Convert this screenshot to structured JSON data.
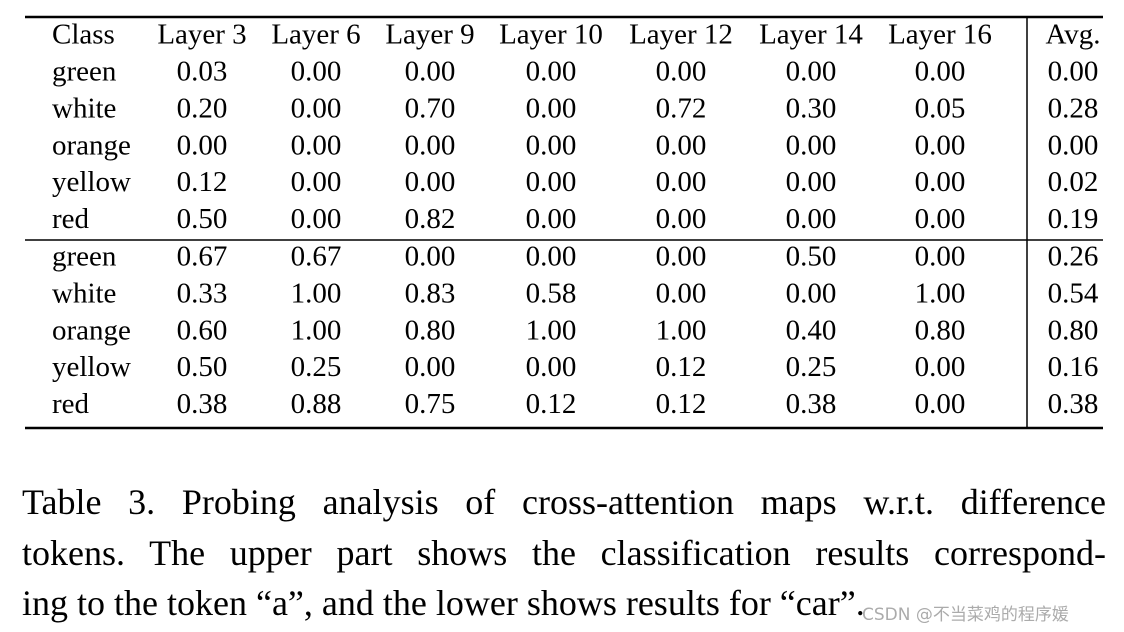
{
  "table": {
    "header": [
      "Class",
      "Layer 3",
      "Layer 6",
      "Layer 9",
      "Layer 10",
      "Layer 12",
      "Layer 14",
      "Layer 16",
      "Avg."
    ],
    "groups": [
      {
        "rows": [
          [
            "green",
            "0.03",
            "0.00",
            "0.00",
            "0.00",
            "0.00",
            "0.00",
            "0.00",
            "0.00"
          ],
          [
            "white",
            "0.20",
            "0.00",
            "0.70",
            "0.00",
            "0.72",
            "0.30",
            "0.05",
            "0.28"
          ],
          [
            "orange",
            "0.00",
            "0.00",
            "0.00",
            "0.00",
            "0.00",
            "0.00",
            "0.00",
            "0.00"
          ],
          [
            "yellow",
            "0.12",
            "0.00",
            "0.00",
            "0.00",
            "0.00",
            "0.00",
            "0.00",
            "0.02"
          ],
          [
            "red",
            "0.50",
            "0.00",
            "0.82",
            "0.00",
            "0.00",
            "0.00",
            "0.00",
            "0.19"
          ]
        ]
      },
      {
        "rows": [
          [
            "green",
            "0.67",
            "0.67",
            "0.00",
            "0.00",
            "0.00",
            "0.50",
            "0.00",
            "0.26"
          ],
          [
            "white",
            "0.33",
            "1.00",
            "0.83",
            "0.58",
            "0.00",
            "0.00",
            "1.00",
            "0.54"
          ],
          [
            "orange",
            "0.60",
            "1.00",
            "0.80",
            "1.00",
            "1.00",
            "0.40",
            "0.80",
            "0.80"
          ],
          [
            "yellow",
            "0.50",
            "0.25",
            "0.00",
            "0.00",
            "0.12",
            "0.25",
            "0.00",
            "0.16"
          ],
          [
            "red",
            "0.38",
            "0.88",
            "0.75",
            "0.12",
            "0.12",
            "0.38",
            "0.00",
            "0.38"
          ]
        ]
      }
    ]
  },
  "caption": {
    "lines": [
      "Table 3. Probing analysis of cross-attention maps w.r.t. difference",
      "tokens. The upper part shows the classification results correspond-",
      "ing to the token “a”, and the lower shows results for “car”."
    ]
  },
  "watermark": "CSDN @不当菜鸡的程序媛"
}
